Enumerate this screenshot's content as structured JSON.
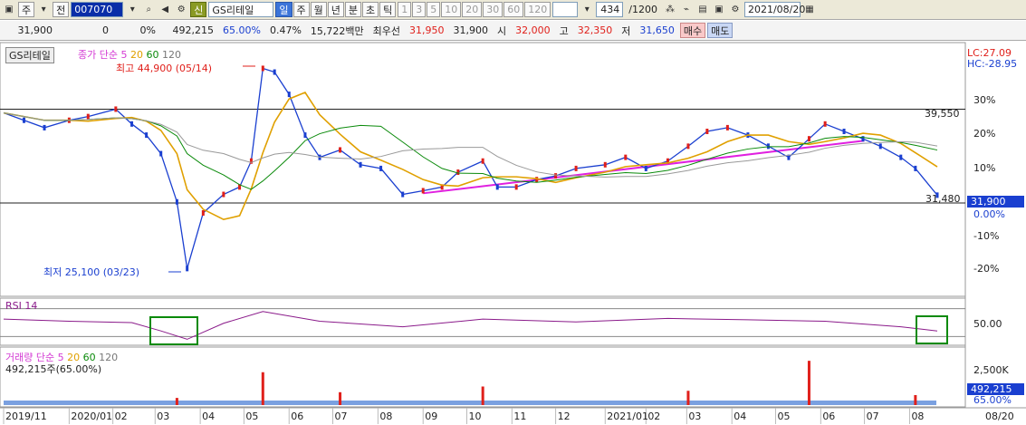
{
  "toolbar": {
    "view_mode": "주",
    "pre_label": "전",
    "code": "007070",
    "new_badge": "신",
    "name": "GS리테일",
    "periods": [
      "일",
      "주",
      "월",
      "년",
      "분",
      "초",
      "틱"
    ],
    "selected_period": "일",
    "ticks": [
      "1",
      "3",
      "5",
      "10",
      "20",
      "30",
      "60",
      "120"
    ],
    "count": "434",
    "count_total": "/1200",
    "date": "2021/08/20"
  },
  "quote": {
    "price": "31,900",
    "change": "0",
    "change_pct": "0%",
    "volume": "492,215",
    "vol_ratio": "65.00%",
    "turnover_ratio": "0.47%",
    "amount": "15,722백만",
    "best_ask_label": "최우선",
    "best_ask": "31,950",
    "best_bid": "31,900",
    "open_label": "시",
    "open": "32,000",
    "high_label": "고",
    "high": "32,350",
    "low_label": "저",
    "low": "31,650",
    "buy_label": "매수",
    "sell_label": "매도"
  },
  "chart_data": [
    {
      "type": "line",
      "title": "GS리테일",
      "legend": [
        "종가",
        "단순",
        "5",
        "20",
        "60",
        "120"
      ],
      "high_annotation": "최고 44,900 (05/14)",
      "low_annotation": "최저 25,100 (03/23)",
      "hlines": [
        {
          "label": "39,550",
          "value": 39550
        },
        {
          "label": "31,480",
          "value": 31480
        }
      ],
      "lc_label": "LC:27.09",
      "hc_label": "HC:-28.95",
      "y_ticks": [
        "30%",
        "20%",
        "10%",
        "0.00%",
        "-10%",
        "-20%"
      ],
      "current_label": "31,900",
      "ylim": [
        -26,
        40
      ],
      "series": [
        {
          "name": "종가",
          "x": [
            "2019/11/18",
            "2019/12/02",
            "2019/12/16",
            "2020/01/02",
            "2020/01/15",
            "2020/02/03",
            "2020/02/14",
            "2020/02/24",
            "2020/03/05",
            "2020/03/16",
            "2020/03/23",
            "2020/04/03",
            "2020/04/17",
            "2020/04/28",
            "2020/05/06",
            "2020/05/14",
            "2020/05/22",
            "2020/06/01",
            "2020/06/12",
            "2020/06/22",
            "2020/07/06",
            "2020/07/20",
            "2020/08/03",
            "2020/08/18",
            "2020/09/01",
            "2020/09/14",
            "2020/09/25",
            "2020/10/12",
            "2020/10/22",
            "2020/11/04",
            "2020/11/18",
            "2020/12/01",
            "2020/12/15",
            "2021/01/04",
            "2021/01/18",
            "2021/02/01",
            "2021/02/16",
            "2021/03/02",
            "2021/03/15",
            "2021/03/29",
            "2021/04/12",
            "2021/04/26",
            "2021/05/10",
            "2021/05/24",
            "2021/06/04",
            "2021/06/17",
            "2021/06/30",
            "2021/07/12",
            "2021/07/26",
            "2021/08/05",
            "2021/08/20"
          ],
          "values": [
            23,
            21,
            19,
            21,
            22,
            24,
            20,
            17,
            12,
            -1,
            -19,
            -4,
            1,
            3,
            10,
            35,
            34,
            28,
            17,
            11,
            13,
            9,
            8,
            1,
            2,
            3,
            7,
            10,
            3,
            3,
            5,
            6,
            8,
            9,
            11,
            8,
            10,
            14,
            18,
            19,
            17,
            14,
            11,
            16,
            20,
            18,
            16,
            14,
            11,
            8,
            0.8
          ]
        }
      ]
    },
    {
      "type": "line",
      "title": "RSI",
      "legend": [
        "RSI",
        "14"
      ],
      "y_ticks": [
        "50.00"
      ],
      "ylim": [
        20,
        80
      ],
      "series": [
        {
          "name": "RSI",
          "x": [
            "2019/11/18",
            "2020/01/02",
            "2020/02/14",
            "2020/03/05",
            "2020/03/23",
            "2020/04/17",
            "2020/05/14",
            "2020/06/22",
            "2020/08/18",
            "2020/10/12",
            "2020/12/15",
            "2021/02/16",
            "2021/04/12",
            "2021/06/04",
            "2021/07/26",
            "2021/08/20"
          ],
          "values": [
            55,
            52,
            50,
            38,
            26,
            49,
            66,
            52,
            44,
            55,
            51,
            56,
            54,
            52,
            44,
            38
          ]
        }
      ]
    },
    {
      "type": "bar",
      "title": "거래량",
      "legend": [
        "거래량",
        "단순",
        "5",
        "20",
        "60",
        "120"
      ],
      "vol_label": "492,215주(65.00%)",
      "y_ticks": [
        "2,500K"
      ],
      "current_label": "492,215",
      "current_pct": "65.00%",
      "x": [
        "2020/03/16",
        "2020/05/14",
        "2020/07/06",
        "2020/10/12",
        "2021/03/02",
        "2021/05/24",
        "2021/08/05"
      ],
      "values": [
        500,
        2300,
        900,
        1300,
        1000,
        3100,
        700
      ]
    }
  ],
  "x_axis": [
    "2019/11",
    "2020/01",
    "02",
    "03",
    "04",
    "05",
    "06",
    "07",
    "08",
    "09",
    "10",
    "11",
    "12",
    "2021/01",
    "02",
    "03",
    "04",
    "05",
    "06",
    "07",
    "08",
    "08/20"
  ]
}
